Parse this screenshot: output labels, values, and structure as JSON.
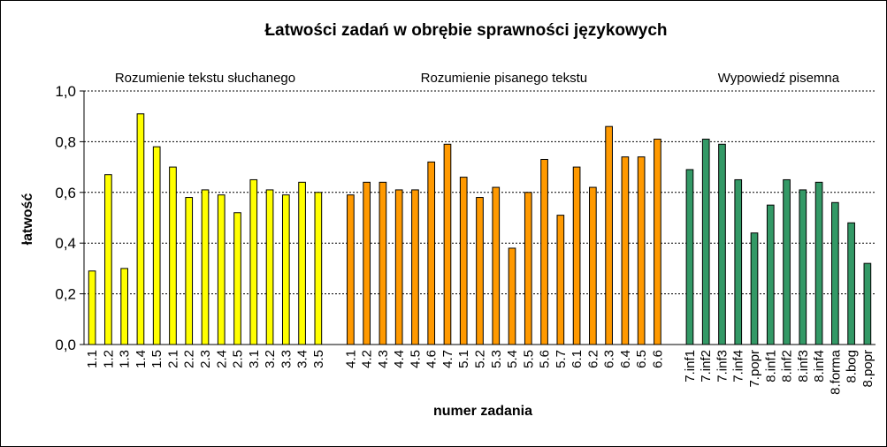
{
  "chart_data": {
    "type": "bar",
    "title": "Łatwości zadań w obrębie sprawności językowych",
    "xlabel": "numer zadania",
    "ylabel": "łatwość",
    "ylim": [
      0,
      1
    ],
    "yticks": [
      "0,0",
      "0,2",
      "0,4",
      "0,6",
      "0,8",
      "1,0"
    ],
    "grid": true,
    "sections": [
      {
        "label": "Rozumienie tekstu słuchanego",
        "color": "#ffff00",
        "categories": [
          "1.1",
          "1.2",
          "1.3",
          "1.4",
          "1.5",
          "2.1",
          "2.2",
          "2.3",
          "2.4",
          "2.5",
          "3.1",
          "3.2",
          "3.3",
          "3.4",
          "3.5"
        ],
        "values": [
          0.29,
          0.67,
          0.3,
          0.91,
          0.78,
          0.7,
          0.58,
          0.61,
          0.59,
          0.52,
          0.65,
          0.61,
          0.59,
          0.64,
          0.6
        ]
      },
      {
        "label": "Rozumienie pisanego tekstu",
        "color": "#ff9900",
        "categories": [
          "4.1",
          "4.2",
          "4.3",
          "4.4",
          "4.5",
          "4.6",
          "4.7",
          "5.1",
          "5.2",
          "5.3",
          "5.4",
          "5.5",
          "5.6",
          "5.7",
          "6.1",
          "6.2",
          "6.3",
          "6.4",
          "6.5",
          "6.6"
        ],
        "values": [
          0.59,
          0.64,
          0.64,
          0.61,
          0.61,
          0.72,
          0.79,
          0.66,
          0.58,
          0.62,
          0.38,
          0.6,
          0.73,
          0.51,
          0.7,
          0.62,
          0.86,
          0.74,
          0.74,
          0.81
        ]
      },
      {
        "label": "Wypowiedź pisemna",
        "color": "#339966",
        "categories": [
          "7.inf1",
          "7.inf2",
          "7.inf3",
          "7.inf4",
          "7.popr",
          "8.inf1",
          "8.inf2",
          "8.inf3",
          "8.inf4",
          "8.forma",
          "8.bog",
          "8.popr"
        ],
        "values": [
          0.69,
          0.81,
          0.79,
          0.65,
          0.44,
          0.55,
          0.65,
          0.61,
          0.64,
          0.56,
          0.48,
          0.32
        ]
      }
    ]
  }
}
